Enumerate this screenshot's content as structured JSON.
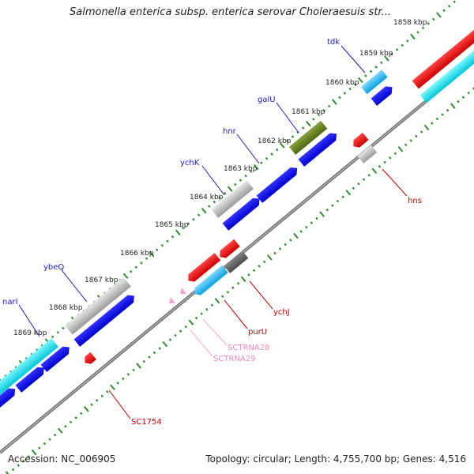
{
  "header": {
    "title": "Salmonella enterica subsp. enterica serovar Choleraesuis str..."
  },
  "footer": {
    "accession": "Accession: NC_006905",
    "topology": "Topology: circular; Length: 4,755,700 bp; Genes: 4,516"
  },
  "colors": {
    "backbone": "#8c8c8c",
    "tick_major": "#2e8b2e",
    "tick_minor": "#2e8b2e",
    "label_top": "#1a1acc",
    "label_bottom_red": "#cc0000",
    "label_bottom_pink": "#ee88bb"
  },
  "ticks": [
    {
      "label": "1858 kbp"
    },
    {
      "label": "1859 kbp"
    },
    {
      "label": "1860 kbp"
    },
    {
      "label": "1861 kbp"
    },
    {
      "label": "1862 kbp"
    },
    {
      "label": "1863 kbp"
    },
    {
      "label": "1864 kbp"
    },
    {
      "label": "1865 kbp"
    },
    {
      "label": "1866 kbp"
    },
    {
      "label": "1867 kbp"
    },
    {
      "label": "1868 kbp"
    },
    {
      "label": "1869 kbp"
    }
  ],
  "genes_top": [
    {
      "name": "tdk"
    },
    {
      "name": "galU"
    },
    {
      "name": "hnr"
    },
    {
      "name": "ychK"
    },
    {
      "name": "ybeQ"
    },
    {
      "name": "narI"
    }
  ],
  "genes_bottom": [
    {
      "name": "hns"
    },
    {
      "name": "ychJ"
    },
    {
      "name": "purU"
    },
    {
      "name": "SCTRNA28"
    },
    {
      "name": "SCTRNA29"
    },
    {
      "name": "SC1754"
    }
  ]
}
